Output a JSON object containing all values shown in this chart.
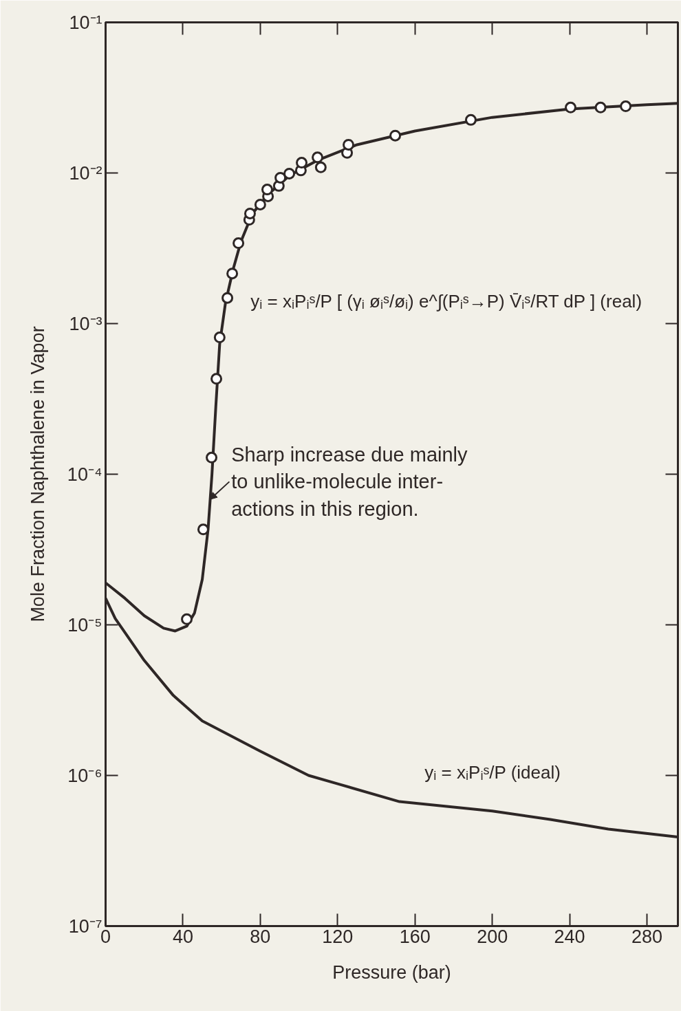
{
  "chart_data": {
    "type": "line",
    "xlabel": "Pressure (bar)",
    "ylabel": "Mole Fraction Naphthalene in Vapor",
    "log": "y",
    "grid": false,
    "xlim": [
      0,
      296
    ],
    "xticks": [
      0,
      40,
      80,
      120,
      160,
      200,
      240,
      280
    ],
    "ylim": [
      1e-07,
      0.1
    ],
    "yticks": [
      {
        "value": 1e-07,
        "label": "10⁻⁷"
      },
      {
        "value": 1e-06,
        "label": "10⁻⁶"
      },
      {
        "value": 1e-05,
        "label": "10⁻⁵"
      },
      {
        "value": 0.0001,
        "label": "10⁻⁴"
      },
      {
        "value": 0.001,
        "label": "10⁻³"
      },
      {
        "value": 0.01,
        "label": "10⁻²"
      },
      {
        "value": 0.1,
        "label": "10⁻¹"
      }
    ],
    "series": [
      {
        "marker": "none",
        "color": "#2e2726",
        "x": [
          0,
          10,
          20,
          30,
          36,
          42,
          46,
          50,
          53,
          55,
          57,
          59,
          62,
          66,
          70,
          76,
          85,
          95,
          110,
          130,
          160,
          200,
          240,
          280,
          296
        ],
        "values": [
          1.9e-05,
          1.5e-05,
          1.15e-05,
          9.5e-06,
          9.1e-06,
          9.8e-06,
          1.2e-05,
          2e-05,
          4.3e-05,
          9.9e-05,
          0.00028,
          0.00073,
          0.00137,
          0.0023,
          0.0035,
          0.0054,
          0.0074,
          0.0096,
          0.0122,
          0.0154,
          0.019,
          0.0234,
          0.0266,
          0.0284,
          0.029
        ]
      },
      {
        "marker": "none",
        "color": "#2e2726",
        "x": [
          0,
          5,
          10,
          20,
          35,
          50,
          80,
          105,
          120,
          152,
          200,
          230,
          260,
          296
        ],
        "values": [
          1.5e-05,
          1.1e-05,
          8.9e-06,
          5.8e-06,
          3.4e-06,
          2.3e-06,
          1.45e-06,
          1e-06,
          8.8e-07,
          6.7e-07,
          5.8e-07,
          5.1e-07,
          4.4e-07,
          3.9e-07
        ]
      },
      {
        "type": "scatter",
        "marker": "circle",
        "color": "#2e2726",
        "x": [
          42,
          50.5,
          54.8,
          57.3,
          59,
          63,
          65.5,
          68.7,
          74.3,
          74.7,
          80,
          84,
          83.6,
          89.6,
          90.4,
          95,
          101,
          101.4,
          109.6,
          111.3,
          124.9,
          125.6,
          149.8,
          188.9,
          240.5,
          256,
          269
        ],
        "values": [
          1.09e-05,
          4.3e-05,
          0.000129,
          0.00043,
          0.00081,
          0.00148,
          0.00215,
          0.00342,
          0.00489,
          0.00538,
          0.00617,
          0.007,
          0.00776,
          0.0082,
          0.0093,
          0.0099,
          0.0104,
          0.0117,
          0.0127,
          0.0109,
          0.0136,
          0.0154,
          0.0177,
          0.0225,
          0.0272,
          0.0272,
          0.0277
        ]
      }
    ],
    "annotations": [
      "yᵢ = xᵢPᵢˢ/P [ (γᵢ øᵢˢ/øᵢ) e^∫(Pᵢˢ→P) V̄ᵢˢ/RT dP ] (real)",
      {
        "text": "Sharp increase due mainly\nto unlike-molecule inter-\nactions in this region.",
        "x": 54,
        "y": 6.8e-05
      },
      "yᵢ = xᵢPᵢˢ/P   (ideal)"
    ]
  }
}
